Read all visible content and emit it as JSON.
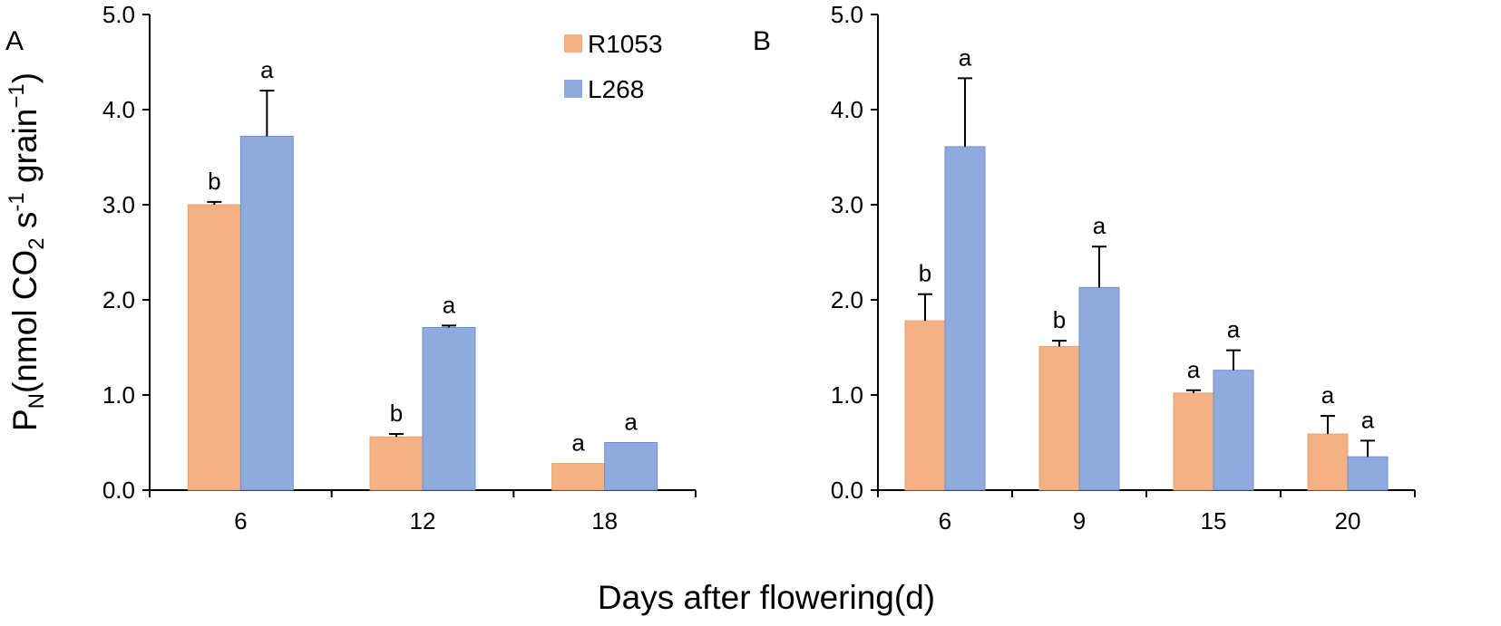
{
  "figure": {
    "ylabel_main": "P",
    "ylabel_sub": "N",
    "ylabel_part1": "(nmol CO",
    "ylabel_sub2": "2",
    "ylabel_part2": " s",
    "ylabel_sup1": "-1",
    "ylabel_part3": " grain",
    "ylabel_sup2": "−1",
    "ylabel_part4": ")",
    "xlabel": "Days after flowering(d)"
  },
  "colors": {
    "R1053": "#F4B183",
    "L268": "#8FAADC",
    "bar_edge_R1053": "#E9A06B",
    "bar_edge_L268": "#6F8FCB"
  },
  "chart_data": [
    {
      "type": "bar",
      "panel": "A",
      "categories": [
        "6",
        "12",
        "18"
      ],
      "series": [
        {
          "name": "R1053",
          "values": [
            3.0,
            0.56,
            0.28
          ],
          "errors": [
            0.03,
            0.03,
            0.0
          ],
          "letters": [
            "b",
            "b",
            "a"
          ]
        },
        {
          "name": "L268",
          "values": [
            3.72,
            1.71,
            0.5
          ],
          "errors": [
            0.48,
            0.02,
            0.0
          ],
          "letters": [
            "a",
            "a",
            "a"
          ]
        }
      ],
      "ylim": [
        0,
        5
      ],
      "yticks": [
        "0.0",
        "1.0",
        "2.0",
        "3.0",
        "4.0",
        "5.0"
      ],
      "legend": "top-right",
      "grid": false
    },
    {
      "type": "bar",
      "panel": "B",
      "categories": [
        "6",
        "9",
        "15",
        "20"
      ],
      "series": [
        {
          "name": "R1053",
          "values": [
            1.78,
            1.51,
            1.02,
            0.59
          ],
          "errors": [
            0.28,
            0.06,
            0.03,
            0.19
          ],
          "letters": [
            "b",
            "b",
            "a",
            "a"
          ]
        },
        {
          "name": "L268",
          "values": [
            3.61,
            2.13,
            1.26,
            0.35
          ],
          "errors": [
            0.72,
            0.43,
            0.21,
            0.17
          ],
          "letters": [
            "a",
            "a",
            "a",
            "a"
          ]
        }
      ],
      "ylim": [
        0,
        5
      ],
      "yticks": [
        "0.0",
        "1.0",
        "2.0",
        "3.0",
        "4.0",
        "5.0"
      ],
      "grid": false
    }
  ]
}
